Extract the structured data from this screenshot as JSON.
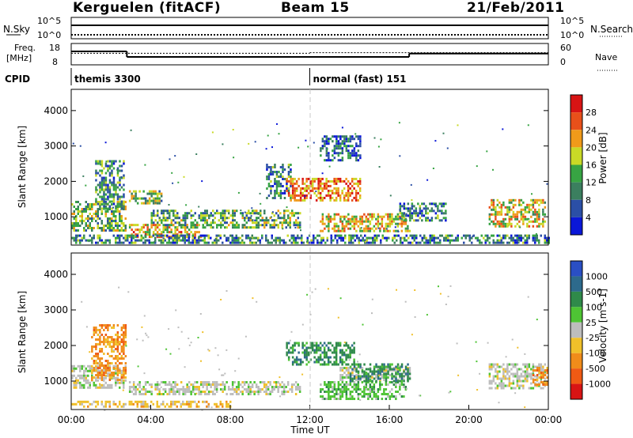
{
  "header": {
    "station": "Kerguelen (fitACF)",
    "beam": "Beam 15",
    "date": "21/Feb/2011"
  },
  "side_labels": {
    "nsky": "N.Sky",
    "nsearch": "N.Search",
    "freq_line1": "Freq.",
    "freq_line2": "[MHz]",
    "nave": "Nave",
    "cpid": "CPID"
  },
  "chart_data": [
    {
      "type": "line",
      "name": "noise",
      "left_ticks": [
        "10^5",
        "10^0"
      ],
      "right_ticks": [
        "10^5",
        "10^0"
      ],
      "note": "log scale, sky noise solid near top, search noise dotted"
    },
    {
      "type": "line",
      "name": "frequency-nave",
      "left_ticks": [
        "18",
        "8"
      ],
      "right_ticks": [
        "60",
        "0"
      ],
      "freq_steps": [
        {
          "x": [
            0,
            2.8
          ],
          "y": 14.3
        },
        {
          "x": [
            2.8,
            17.0
          ],
          "y": 11.7
        },
        {
          "x": [
            17.0,
            24.0
          ],
          "y": 13.3
        }
      ],
      "nave_dotted": [
        {
          "x": [
            0,
            12.0
          ],
          "y": 13.4
        },
        {
          "x": [
            12.0,
            24.0
          ],
          "y": 13.7
        }
      ]
    },
    {
      "type": "table",
      "name": "cpid",
      "segments": [
        {
          "start": 0,
          "label": "themis 3300"
        },
        {
          "start": 12.0,
          "label": "normal (fast) 151"
        }
      ]
    },
    {
      "type": "heatmap",
      "name": "power",
      "ylabel": "Slant Range [km]",
      "yticks": [
        "1000",
        "2000",
        "3000",
        "4000"
      ],
      "ylim": [
        200,
        4600
      ],
      "xlim": [
        0,
        24
      ],
      "colorbar_label": "Power [dB]",
      "colorbar_ticks": [
        "4",
        "8",
        "12",
        "16",
        "20",
        "24",
        "28"
      ],
      "colors": [
        "#0a17d8",
        "#2b4fa6",
        "#3b7f5f",
        "#37a443",
        "#c9d926",
        "#f09a1a",
        "#e8501a",
        "#d81414"
      ],
      "regions": [
        {
          "t0": 0.0,
          "t1": 2.7,
          "r0": 600,
          "r1": 1450,
          "level": 0.45
        },
        {
          "t0": 1.2,
          "t1": 2.6,
          "r0": 1200,
          "r1": 2600,
          "level": 0.35
        },
        {
          "t0": 2.9,
          "t1": 6.5,
          "r0": 400,
          "r1": 800,
          "level": 0.65
        },
        {
          "t0": 2.9,
          "t1": 4.5,
          "r0": 1350,
          "r1": 1750,
          "level": 0.45
        },
        {
          "t0": 4.0,
          "t1": 11.5,
          "r0": 700,
          "r1": 1200,
          "level": 0.4
        },
        {
          "t0": 9.8,
          "t1": 11.0,
          "r0": 1500,
          "r1": 2500,
          "level": 0.3
        },
        {
          "t0": 10.8,
          "t1": 14.5,
          "r0": 1450,
          "r1": 2100,
          "level": 0.75
        },
        {
          "t0": 12.5,
          "t1": 17.0,
          "r0": 600,
          "r1": 1100,
          "level": 0.6
        },
        {
          "t0": 12.5,
          "t1": 14.5,
          "r0": 2600,
          "r1": 3300,
          "level": 0.25
        },
        {
          "t0": 16.5,
          "t1": 18.8,
          "r0": 900,
          "r1": 1400,
          "level": 0.3
        },
        {
          "t0": 21.0,
          "t1": 23.8,
          "r0": 700,
          "r1": 1500,
          "level": 0.6
        },
        {
          "t0": 0.0,
          "t1": 24.0,
          "r0": 250,
          "r1": 500,
          "level": 0.3
        }
      ]
    },
    {
      "type": "heatmap",
      "name": "velocity",
      "ylabel": "Slant Range [km]",
      "yticks": [
        "1000",
        "2000",
        "3000",
        "4000"
      ],
      "ylim": [
        200,
        4600
      ],
      "xlim": [
        0,
        24
      ],
      "xticks": [
        "00:00",
        "04:00",
        "08:00",
        "12:00",
        "16:00",
        "20:00",
        "00:00"
      ],
      "xlabel": "Time UT",
      "colorbar_label": "Velocity [m s-1]",
      "colorbar_ticks": [
        "1000",
        "500",
        "100",
        "25",
        "-25",
        "-100",
        "-500",
        "-1000"
      ],
      "colors": [
        "#2a4fc4",
        "#2d6a8c",
        "#2f8a4a",
        "#4ec434",
        "#bdbdbd",
        "#f0c02a",
        "#f08c1a",
        "#ef5a14",
        "#d81414"
      ],
      "regions": [
        {
          "t0": 0.0,
          "t1": 2.7,
          "r0": 800,
          "r1": 1450,
          "level": 4
        },
        {
          "t0": 1.0,
          "t1": 2.7,
          "r0": 1000,
          "r1": 2600,
          "level": 6
        },
        {
          "t0": 2.9,
          "t1": 11.5,
          "r0": 600,
          "r1": 1000,
          "level": 4
        },
        {
          "t0": 0.0,
          "t1": 8.0,
          "r0": 250,
          "r1": 450,
          "level": 5
        },
        {
          "t0": 10.8,
          "t1": 14.2,
          "r0": 1450,
          "r1": 2100,
          "level": 2
        },
        {
          "t0": 12.5,
          "t1": 16.8,
          "r0": 500,
          "r1": 1000,
          "level": 3
        },
        {
          "t0": 13.5,
          "t1": 17.0,
          "r0": 1000,
          "r1": 1400,
          "level": 4
        },
        {
          "t0": 21.0,
          "t1": 23.8,
          "r0": 800,
          "r1": 1500,
          "level": 4
        },
        {
          "t0": 23.2,
          "t1": 23.9,
          "r0": 900,
          "r1": 1400,
          "level": 6
        },
        {
          "t0": 14.0,
          "t1": 17.0,
          "r0": 1000,
          "r1": 1500,
          "level": 2
        }
      ]
    }
  ]
}
